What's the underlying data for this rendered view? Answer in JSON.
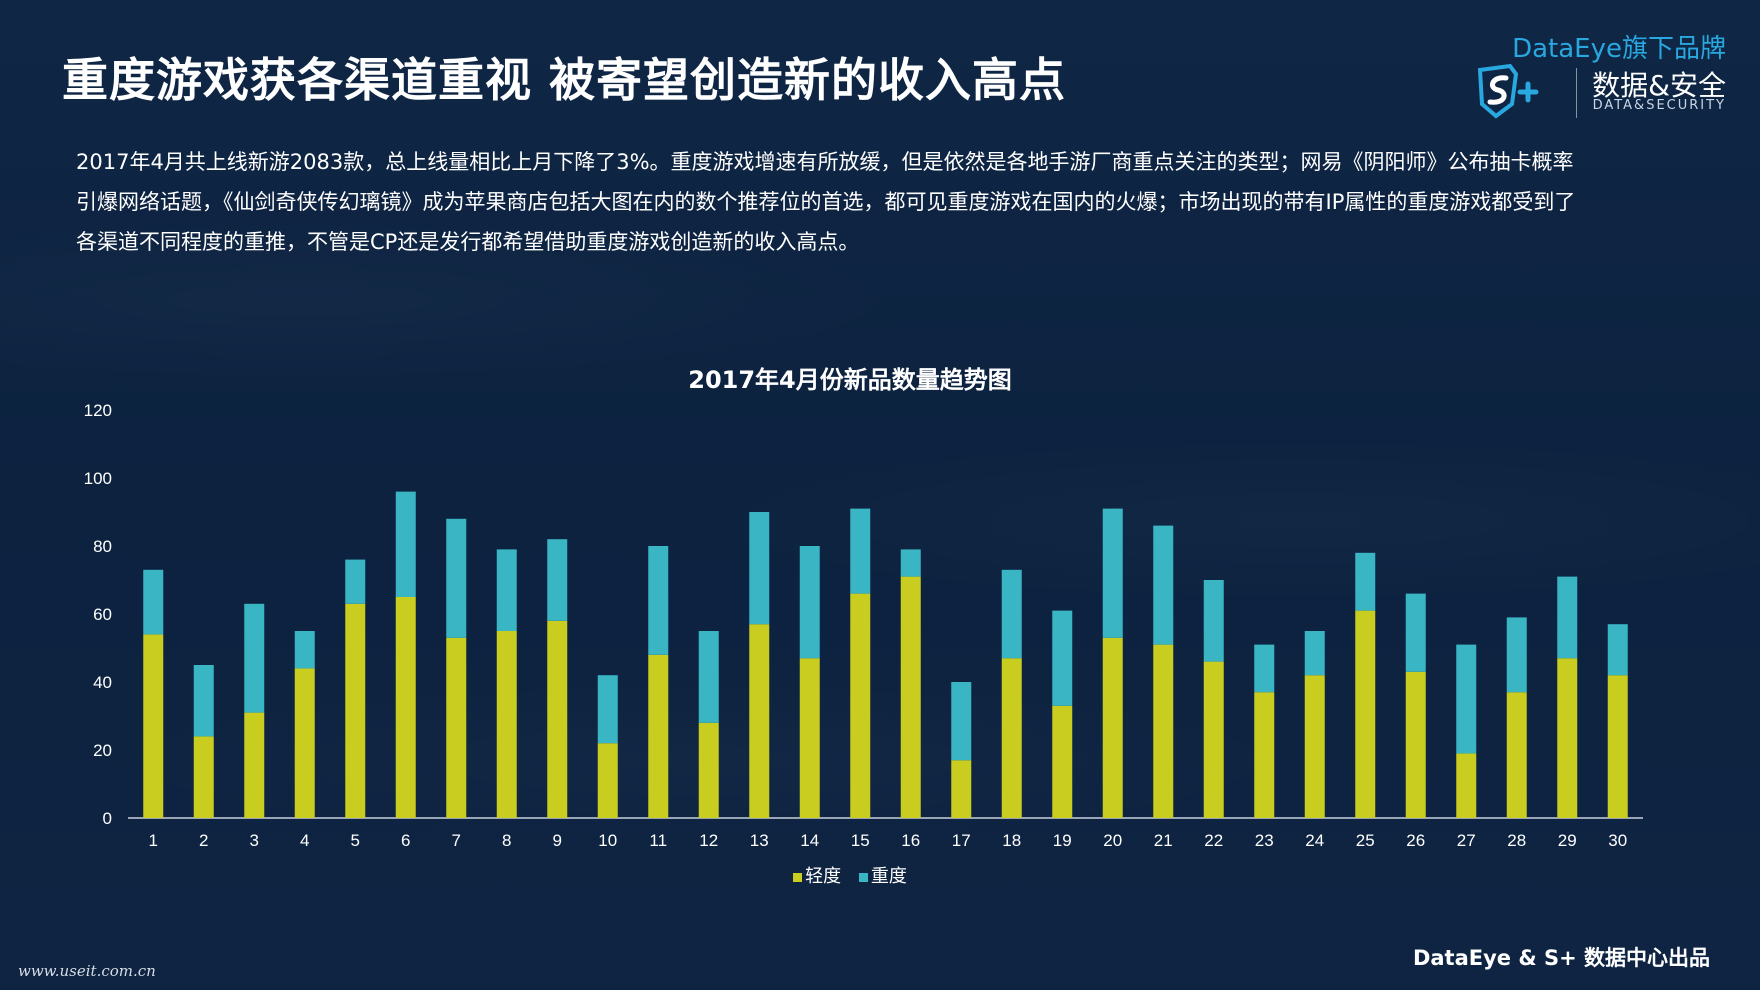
{
  "header": {
    "title": "重度游戏获各渠道重视  被寄望创造新的收入高点"
  },
  "brand": {
    "line": "DataEye旗下品牌",
    "cn": "数据&安全",
    "en": "DATA&SECURITY",
    "logo_icon": "shield-s-plus-logo",
    "accent_color": "#29a8e0"
  },
  "intro": {
    "text": "2017年4月共上线新游2083款，总上线量相比上月下降了3%。重度游戏增速有所放缓，但是依然是各地手游厂商重点关注的类型；网易《阴阳师》公布抽卡概率引爆网络话题，《仙剑奇侠传幻璃镜》成为苹果商店包括大图在内的数个推荐位的首选，都可见重度游戏在国内的火爆；市场出现的带有IP属性的重度游戏都受到了各渠道不同程度的重推，不管是CP还是发行都希望借助重度游戏创造新的收入高点。"
  },
  "chart_data": {
    "type": "bar",
    "stacked": true,
    "title": "2017年4月份新品数量趋势图",
    "xlabel": "",
    "ylabel": "",
    "ylim": [
      0,
      120
    ],
    "yticks": [
      "0",
      "20",
      "40",
      "60",
      "80",
      "100",
      "120"
    ],
    "categories": [
      "1",
      "2",
      "3",
      "4",
      "5",
      "6",
      "7",
      "8",
      "9",
      "10",
      "11",
      "12",
      "13",
      "14",
      "15",
      "16",
      "17",
      "18",
      "19",
      "20",
      "21",
      "22",
      "23",
      "24",
      "25",
      "26",
      "27",
      "28",
      "29",
      "30"
    ],
    "series": [
      {
        "name": "轻度",
        "color": "#c8cd1f",
        "values": [
          54,
          24,
          31,
          44,
          63,
          65,
          53,
          55,
          58,
          22,
          48,
          28,
          57,
          47,
          66,
          71,
          17,
          47,
          33,
          53,
          51,
          46,
          37,
          42,
          61,
          43,
          19,
          37,
          47,
          42
        ]
      },
      {
        "name": "重度",
        "color": "#39b5c4",
        "values": [
          19,
          21,
          32,
          11,
          13,
          31,
          35,
          24,
          24,
          20,
          32,
          27,
          33,
          33,
          25,
          8,
          23,
          26,
          28,
          38,
          35,
          24,
          14,
          13,
          17,
          23,
          32,
          22,
          24,
          15
        ]
      }
    ],
    "grid": false,
    "legend_position": "bottom"
  },
  "footer": {
    "credit": "DataEye & S+ 数据中心出品",
    "watermark": "www.useit.com.cn"
  }
}
